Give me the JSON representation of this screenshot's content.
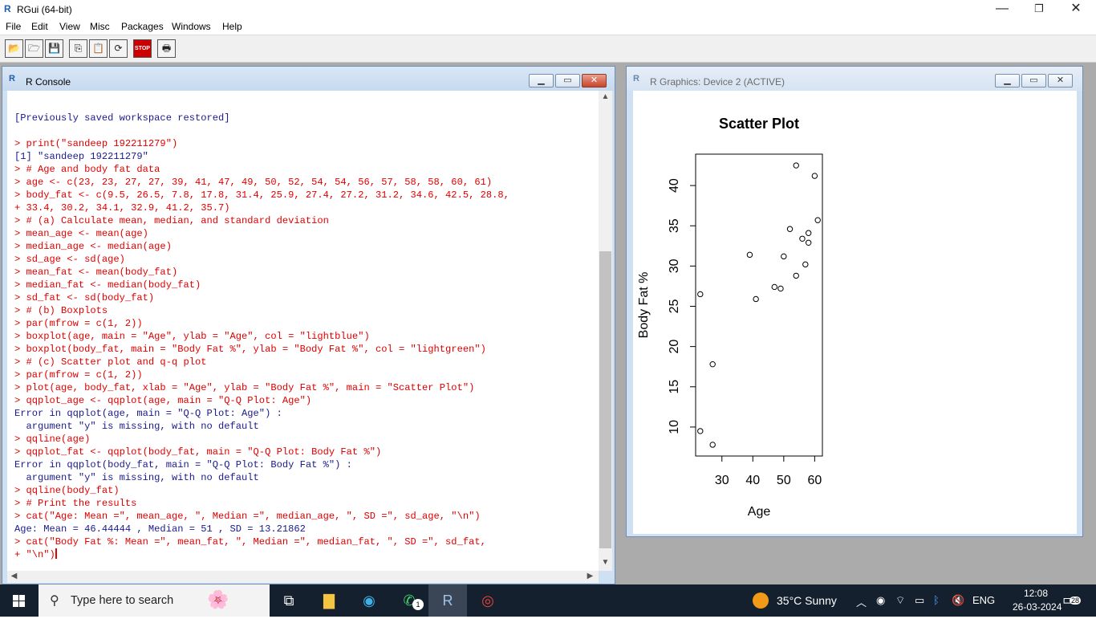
{
  "window": {
    "title": "RGui (64-bit)",
    "icon": "R"
  },
  "window_controls": {
    "minimize": "—",
    "restore": "❐",
    "close": "✕"
  },
  "menu": [
    "File",
    "Edit",
    "View",
    "Misc",
    "Packages",
    "Windows",
    "Help"
  ],
  "toolbar": {
    "stop_label": "STOP"
  },
  "console": {
    "title": "R Console",
    "lines": [
      {
        "t": "out",
        "s": "[Previously saved workspace restored]"
      },
      {
        "t": "out",
        "s": ""
      },
      {
        "t": "in",
        "s": "> print(\"sandeep 192211279\")"
      },
      {
        "t": "out",
        "s": "[1] \"sandeep 192211279\""
      },
      {
        "t": "in",
        "s": "> # Age and body fat data"
      },
      {
        "t": "in",
        "s": "> age <- c(23, 23, 27, 27, 39, 41, 47, 49, 50, 52, 54, 54, 56, 57, 58, 58, 60, 61)"
      },
      {
        "t": "in",
        "s": "> body_fat <- c(9.5, 26.5, 7.8, 17.8, 31.4, 25.9, 27.4, 27.2, 31.2, 34.6, 42.5, 28.8,"
      },
      {
        "t": "in",
        "s": "+ 33.4, 30.2, 34.1, 32.9, 41.2, 35.7)"
      },
      {
        "t": "in",
        "s": "> # (a) Calculate mean, median, and standard deviation"
      },
      {
        "t": "in",
        "s": "> mean_age <- mean(age)"
      },
      {
        "t": "in",
        "s": "> median_age <- median(age)"
      },
      {
        "t": "in",
        "s": "> sd_age <- sd(age)"
      },
      {
        "t": "in",
        "s": "> mean_fat <- mean(body_fat)"
      },
      {
        "t": "in",
        "s": "> median_fat <- median(body_fat)"
      },
      {
        "t": "in",
        "s": "> sd_fat <- sd(body_fat)"
      },
      {
        "t": "in",
        "s": "> # (b) Boxplots"
      },
      {
        "t": "in",
        "s": "> par(mfrow = c(1, 2))"
      },
      {
        "t": "in",
        "s": "> boxplot(age, main = \"Age\", ylab = \"Age\", col = \"lightblue\")"
      },
      {
        "t": "in",
        "s": "> boxplot(body_fat, main = \"Body Fat %\", ylab = \"Body Fat %\", col = \"lightgreen\")"
      },
      {
        "t": "in",
        "s": "> # (c) Scatter plot and q-q plot"
      },
      {
        "t": "in",
        "s": "> par(mfrow = c(1, 2))"
      },
      {
        "t": "in",
        "s": "> plot(age, body_fat, xlab = \"Age\", ylab = \"Body Fat %\", main = \"Scatter Plot\")"
      },
      {
        "t": "in",
        "s": "> qqplot_age <- qqplot(age, main = \"Q-Q Plot: Age\")"
      },
      {
        "t": "out",
        "s": "Error in qqplot(age, main = \"Q-Q Plot: Age\") :"
      },
      {
        "t": "out",
        "s": "  argument \"y\" is missing, with no default"
      },
      {
        "t": "in",
        "s": "> qqline(age)"
      },
      {
        "t": "in",
        "s": "> qqplot_fat <- qqplot(body_fat, main = \"Q-Q Plot: Body Fat %\")"
      },
      {
        "t": "out",
        "s": "Error in qqplot(body_fat, main = \"Q-Q Plot: Body Fat %\") :"
      },
      {
        "t": "out",
        "s": "  argument \"y\" is missing, with no default"
      },
      {
        "t": "in",
        "s": "> qqline(body_fat)"
      },
      {
        "t": "in",
        "s": "> # Print the results"
      },
      {
        "t": "in",
        "s": "> cat(\"Age: Mean =\", mean_age, \", Median =\", median_age, \", SD =\", sd_age, \"\\n\")"
      },
      {
        "t": "out",
        "s": "Age: Mean = 46.44444 , Median = 51 , SD = 13.21862"
      },
      {
        "t": "in",
        "s": "> cat(\"Body Fat %: Mean =\", mean_fat, \", Median =\", median_fat, \", SD =\", sd_fat,"
      },
      {
        "t": "in",
        "s": "+ \"\\n\")"
      }
    ]
  },
  "graphics": {
    "title": "R Graphics: Device 2 (ACTIVE)"
  },
  "chart_data": {
    "type": "scatter",
    "title": "Scatter Plot",
    "xlabel": "Age",
    "ylabel": "Body Fat %",
    "x": [
      23,
      23,
      27,
      27,
      39,
      41,
      47,
      49,
      50,
      52,
      54,
      54,
      56,
      57,
      58,
      58,
      60,
      61
    ],
    "y": [
      9.5,
      26.5,
      7.8,
      17.8,
      31.4,
      25.9,
      27.4,
      27.2,
      31.2,
      34.6,
      42.5,
      28.8,
      33.4,
      30.2,
      34.1,
      32.9,
      41.2,
      35.7
    ],
    "xlim": [
      21.5,
      62.5
    ],
    "ylim": [
      6.4,
      43.9
    ],
    "xticks": [
      30,
      40,
      50,
      60
    ],
    "yticks": [
      10,
      15,
      20,
      25,
      30,
      35,
      40
    ],
    "grid": false,
    "marker": "open-circle"
  },
  "taskbar": {
    "search_placeholder": "Type here to search",
    "weather": "35°C  Sunny",
    "language": "ENG",
    "time": "12:08",
    "date": "26-03-2024",
    "notifications": "28",
    "whatsapp_badge": "1"
  },
  "colors": {
    "input": "#e00000",
    "output": "#1a1a8c",
    "mdi_bg": "#ababab",
    "taskbar": "#14202e"
  }
}
